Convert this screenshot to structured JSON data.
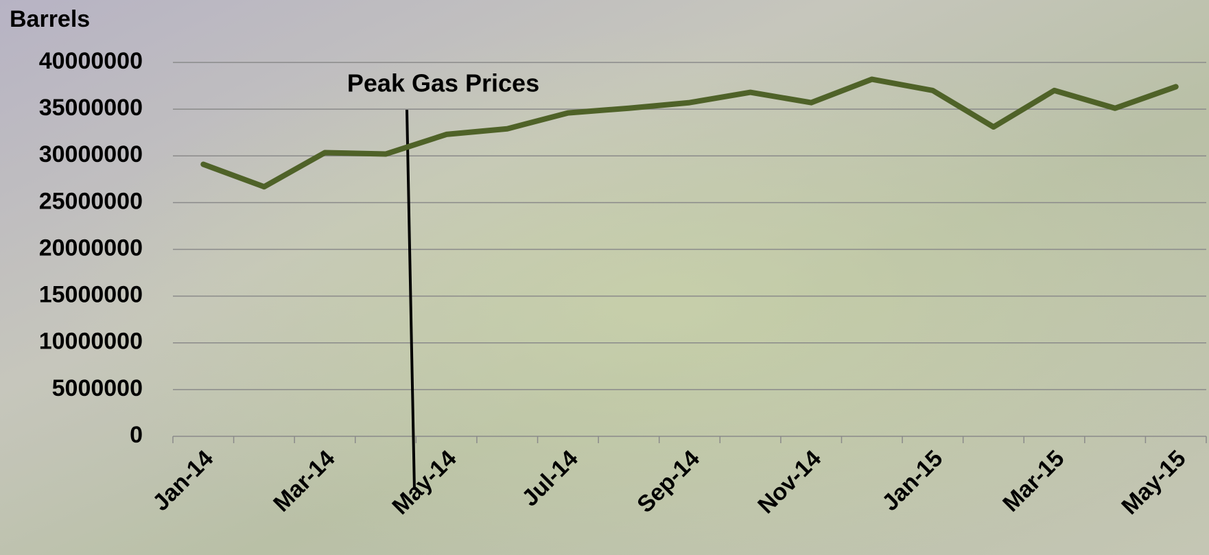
{
  "chart_data": {
    "type": "line",
    "y_label": "Barrels",
    "annotation": "Peak Gas Prices",
    "categories": [
      "Jan-14",
      null,
      "Mar-14",
      null,
      "May-14",
      null,
      "Jul-14",
      null,
      "Sep-14",
      null,
      "Nov-14",
      null,
      "Jan-15",
      null,
      "Mar-15",
      null,
      "May-15"
    ],
    "series": [
      {
        "color": "#4f6228",
        "values": [
          29100000,
          26700000,
          30350000,
          30200000,
          32300000,
          32900000,
          34600000,
          35100000,
          35700000,
          36800000,
          35700000,
          38200000,
          37000000,
          33100000,
          37000000,
          35100000,
          37400000
        ]
      }
    ],
    "ylim": [
      0,
      40000000
    ],
    "yticks": [
      0,
      5000000,
      10000000,
      15000000,
      20000000,
      25000000,
      30000000,
      35000000,
      40000000
    ],
    "grid": true
  }
}
